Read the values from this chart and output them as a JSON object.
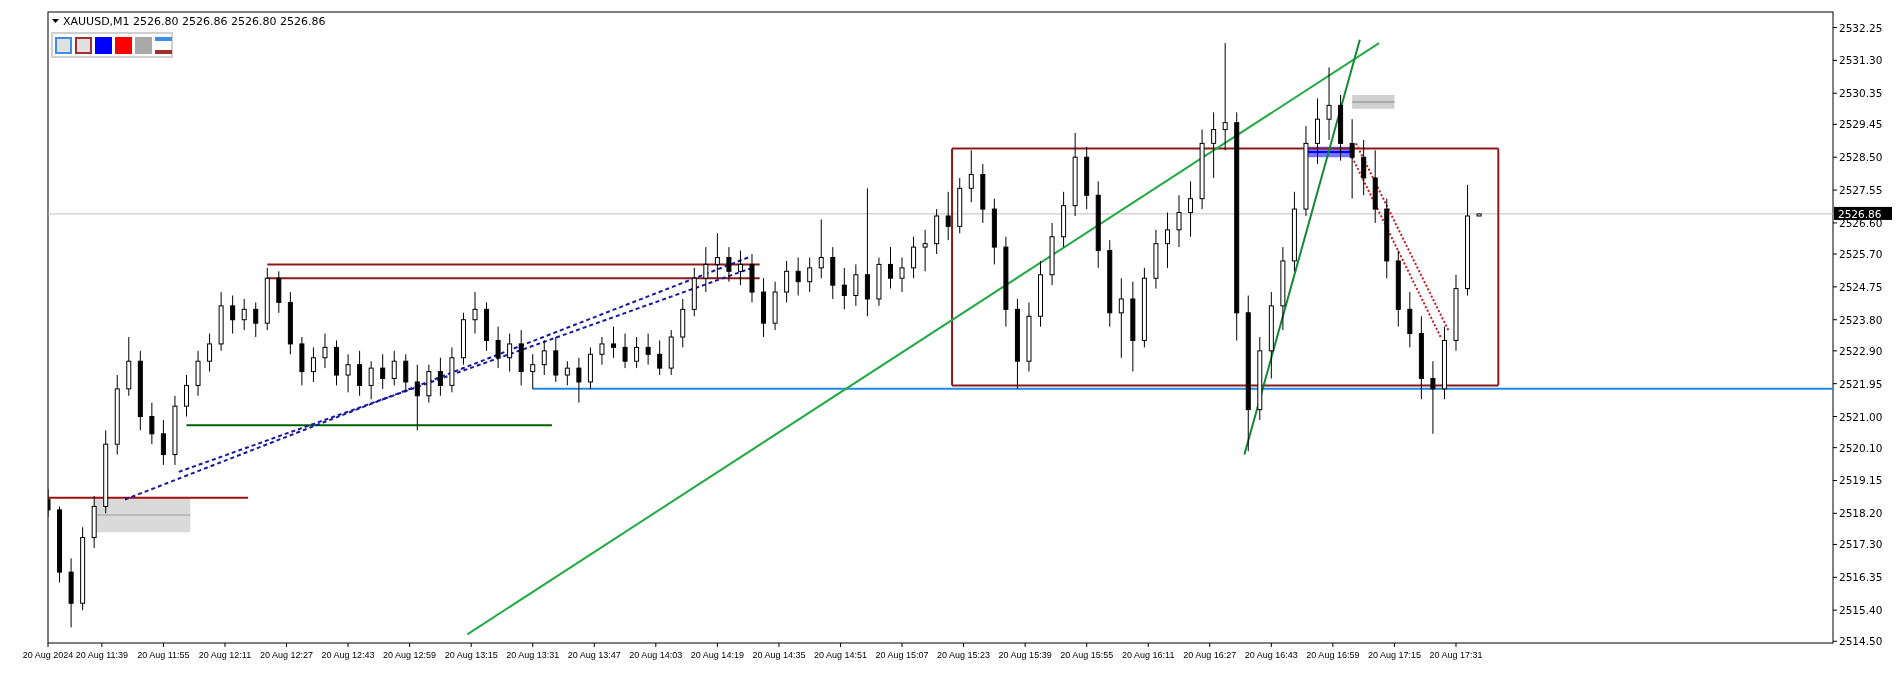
{
  "chart_data": {
    "type": "candlestick",
    "title": "XAUUSD,M1  2526.80 2526.86 2526.80 2526.86",
    "color": "#000000",
    "x": [
      "2024-08-20T11:25",
      "2024-08-20T11:28",
      "2024-08-20T11:31",
      "2024-08-20T11:34",
      "2024-08-20T11:37",
      "2024-08-20T11:40",
      "2024-08-20T11:43",
      "2024-08-20T11:46",
      "2024-08-20T11:49",
      "2024-08-20T11:52",
      "2024-08-20T11:55",
      "2024-08-20T11:58",
      "2024-08-20T12:01",
      "2024-08-20T12:04",
      "2024-08-20T12:07",
      "2024-08-20T12:10",
      "2024-08-20T12:13",
      "2024-08-20T12:16",
      "2024-08-20T12:19",
      "2024-08-20T12:22",
      "2024-08-20T12:25",
      "2024-08-20T12:28",
      "2024-08-20T12:31",
      "2024-08-20T12:34",
      "2024-08-20T12:37",
      "2024-08-20T12:40",
      "2024-08-20T12:43",
      "2024-08-20T12:46",
      "2024-08-20T12:49",
      "2024-08-20T12:52",
      "2024-08-20T12:55",
      "2024-08-20T12:58",
      "2024-08-20T13:01",
      "2024-08-20T13:04",
      "2024-08-20T13:07",
      "2024-08-20T13:10",
      "2024-08-20T13:13",
      "2024-08-20T13:16",
      "2024-08-20T13:19",
      "2024-08-20T13:22",
      "2024-08-20T13:25",
      "2024-08-20T13:28",
      "2024-08-20T13:31",
      "2024-08-20T13:34",
      "2024-08-20T13:37",
      "2024-08-20T13:40",
      "2024-08-20T13:43",
      "2024-08-20T13:46",
      "2024-08-20T13:49",
      "2024-08-20T13:52",
      "2024-08-20T13:55",
      "2024-08-20T13:58",
      "2024-08-20T14:01",
      "2024-08-20T14:04",
      "2024-08-20T14:07",
      "2024-08-20T14:10",
      "2024-08-20T14:13",
      "2024-08-20T14:16",
      "2024-08-20T14:19",
      "2024-08-20T14:22",
      "2024-08-20T14:25",
      "2024-08-20T14:28",
      "2024-08-20T14:31",
      "2024-08-20T14:34",
      "2024-08-20T14:37",
      "2024-08-20T14:40",
      "2024-08-20T14:43",
      "2024-08-20T14:46",
      "2024-08-20T14:49",
      "2024-08-20T14:52",
      "2024-08-20T14:55",
      "2024-08-20T14:58",
      "2024-08-20T15:01",
      "2024-08-20T15:04",
      "2024-08-20T15:07",
      "2024-08-20T15:10",
      "2024-08-20T15:13",
      "2024-08-20T15:16",
      "2024-08-20T15:19",
      "2024-08-20T15:22",
      "2024-08-20T15:25",
      "2024-08-20T15:28",
      "2024-08-20T15:31",
      "2024-08-20T15:34",
      "2024-08-20T15:37",
      "2024-08-20T15:40",
      "2024-08-20T15:43",
      "2024-08-20T15:46",
      "2024-08-20T15:49",
      "2024-08-20T15:52",
      "2024-08-20T15:55",
      "2024-08-20T15:58",
      "2024-08-20T16:01",
      "2024-08-20T16:04",
      "2024-08-20T16:07",
      "2024-08-20T16:10",
      "2024-08-20T16:13",
      "2024-08-20T16:16",
      "2024-08-20T16:19",
      "2024-08-20T16:22",
      "2024-08-20T16:25",
      "2024-08-20T16:28",
      "2024-08-20T16:31",
      "2024-08-20T16:34",
      "2024-08-20T16:37",
      "2024-08-20T16:40",
      "2024-08-20T16:43",
      "2024-08-20T16:46",
      "2024-08-20T16:49",
      "2024-08-20T16:52",
      "2024-08-20T16:55",
      "2024-08-20T16:58",
      "2024-08-20T17:01",
      "2024-08-20T17:04",
      "2024-08-20T17:07",
      "2024-08-20T17:10",
      "2024-08-20T17:13",
      "2024-08-20T17:16",
      "2024-08-20T17:19",
      "2024-08-20T17:22",
      "2024-08-20T17:25",
      "2024-08-20T17:28",
      "2024-08-20T17:31",
      "2024-08-20T17:34",
      "2024-08-20T17:37"
    ],
    "ohlc": [
      [
        2518.6,
        2518.9,
        2518.1,
        2518.3
      ],
      [
        2518.3,
        2518.4,
        2516.2,
        2516.5
      ],
      [
        2516.5,
        2516.9,
        2514.9,
        2515.6
      ],
      [
        2515.6,
        2517.8,
        2515.4,
        2517.5
      ],
      [
        2517.5,
        2518.7,
        2517.2,
        2518.4
      ],
      [
        2518.4,
        2520.6,
        2518.2,
        2520.2
      ],
      [
        2520.2,
        2522.2,
        2519.9,
        2521.8
      ],
      [
        2521.8,
        2523.3,
        2521.6,
        2522.6
      ],
      [
        2522.6,
        2522.9,
        2520.6,
        2521.0
      ],
      [
        2521.0,
        2521.4,
        2520.2,
        2520.5
      ],
      [
        2520.5,
        2520.9,
        2519.6,
        2519.9
      ],
      [
        2519.9,
        2521.6,
        2519.6,
        2521.3
      ],
      [
        2521.3,
        2522.2,
        2521.0,
        2521.9
      ],
      [
        2521.9,
        2522.9,
        2521.6,
        2522.6
      ],
      [
        2522.6,
        2523.4,
        2522.3,
        2523.1
      ],
      [
        2523.1,
        2524.6,
        2522.9,
        2524.2
      ],
      [
        2524.2,
        2524.5,
        2523.4,
        2523.8
      ],
      [
        2523.8,
        2524.4,
        2523.5,
        2524.1
      ],
      [
        2524.1,
        2524.3,
        2523.3,
        2523.7
      ],
      [
        2523.7,
        2525.3,
        2523.5,
        2525.0
      ],
      [
        2525.0,
        2525.2,
        2524.0,
        2524.3
      ],
      [
        2524.3,
        2524.6,
        2522.8,
        2523.1
      ],
      [
        2523.1,
        2523.3,
        2521.9,
        2522.3
      ],
      [
        2522.3,
        2523.0,
        2522.0,
        2522.7
      ],
      [
        2522.7,
        2523.4,
        2522.4,
        2523.0
      ],
      [
        2523.0,
        2523.2,
        2521.9,
        2522.2
      ],
      [
        2522.2,
        2522.8,
        2521.7,
        2522.5
      ],
      [
        2522.5,
        2522.9,
        2521.6,
        2521.9
      ],
      [
        2521.9,
        2522.6,
        2521.5,
        2522.4
      ],
      [
        2522.4,
        2522.8,
        2521.8,
        2522.1
      ],
      [
        2522.1,
        2522.9,
        2521.9,
        2522.6
      ],
      [
        2522.6,
        2522.8,
        2521.7,
        2522.0
      ],
      [
        2522.0,
        2522.5,
        2520.6,
        2521.6
      ],
      [
        2521.6,
        2522.5,
        2521.4,
        2522.3
      ],
      [
        2522.3,
        2522.7,
        2521.6,
        2521.9
      ],
      [
        2521.9,
        2523.0,
        2521.7,
        2522.7
      ],
      [
        2522.7,
        2524.0,
        2522.5,
        2523.8
      ],
      [
        2523.8,
        2524.6,
        2523.4,
        2524.1
      ],
      [
        2524.1,
        2524.3,
        2522.9,
        2523.2
      ],
      [
        2523.2,
        2523.6,
        2522.4,
        2522.7
      ],
      [
        2522.7,
        2523.4,
        2522.3,
        2523.1
      ],
      [
        2523.1,
        2523.5,
        2521.9,
        2522.3
      ],
      [
        2522.3,
        2522.8,
        2521.8,
        2522.5
      ],
      [
        2522.5,
        2523.2,
        2522.2,
        2522.9
      ],
      [
        2522.9,
        2523.3,
        2522.0,
        2522.2
      ],
      [
        2522.2,
        2522.6,
        2521.9,
        2522.4
      ],
      [
        2522.4,
        2522.7,
        2521.4,
        2522.0
      ],
      [
        2522.0,
        2523.0,
        2521.8,
        2522.8
      ],
      [
        2522.8,
        2523.3,
        2522.5,
        2523.1
      ],
      [
        2523.1,
        2523.6,
        2522.7,
        2523.0
      ],
      [
        2523.0,
        2523.4,
        2522.4,
        2522.6
      ],
      [
        2522.6,
        2523.3,
        2522.4,
        2523.0
      ],
      [
        2523.0,
        2523.4,
        2522.5,
        2522.8
      ],
      [
        2522.8,
        2523.2,
        2522.2,
        2522.4
      ],
      [
        2522.4,
        2523.5,
        2522.2,
        2523.3
      ],
      [
        2523.3,
        2524.4,
        2523.0,
        2524.1
      ],
      [
        2524.1,
        2525.3,
        2523.9,
        2525.0
      ],
      [
        2525.0,
        2525.9,
        2524.6,
        2525.4
      ],
      [
        2525.4,
        2526.3,
        2525.0,
        2525.6
      ],
      [
        2525.6,
        2525.9,
        2524.9,
        2525.2
      ],
      [
        2525.2,
        2525.8,
        2524.8,
        2525.4
      ],
      [
        2525.4,
        2525.7,
        2524.3,
        2524.6
      ],
      [
        2524.6,
        2525.0,
        2523.3,
        2523.7
      ],
      [
        2523.7,
        2524.9,
        2523.5,
        2524.6
      ],
      [
        2524.6,
        2525.5,
        2524.3,
        2525.2
      ],
      [
        2525.2,
        2525.6,
        2524.5,
        2524.9
      ],
      [
        2524.9,
        2525.6,
        2524.6,
        2525.3
      ],
      [
        2525.3,
        2526.7,
        2525.0,
        2525.6
      ],
      [
        2525.6,
        2525.9,
        2524.4,
        2524.8
      ],
      [
        2524.8,
        2525.3,
        2524.1,
        2524.5
      ],
      [
        2524.5,
        2525.4,
        2524.2,
        2525.1
      ],
      [
        2525.1,
        2527.6,
        2523.9,
        2524.4
      ],
      [
        2524.4,
        2525.6,
        2524.2,
        2525.4
      ],
      [
        2525.4,
        2525.9,
        2524.7,
        2525.0
      ],
      [
        2525.0,
        2525.6,
        2524.6,
        2525.3
      ],
      [
        2525.3,
        2526.2,
        2525.0,
        2525.9
      ],
      [
        2525.9,
        2526.4,
        2525.2,
        2526.0
      ],
      [
        2526.0,
        2527.0,
        2525.7,
        2526.8
      ],
      [
        2526.8,
        2527.5,
        2526.1,
        2526.5
      ],
      [
        2526.5,
        2527.9,
        2526.3,
        2527.6
      ],
      [
        2527.6,
        2528.7,
        2527.2,
        2528.0
      ],
      [
        2528.0,
        2528.3,
        2526.6,
        2527.0
      ],
      [
        2527.0,
        2527.3,
        2525.4,
        2525.9
      ],
      [
        2525.9,
        2526.2,
        2523.6,
        2524.1
      ],
      [
        2524.1,
        2524.4,
        2521.8,
        2522.6
      ],
      [
        2522.6,
        2524.3,
        2522.3,
        2523.9
      ],
      [
        2523.9,
        2525.5,
        2523.6,
        2525.1
      ],
      [
        2525.1,
        2526.6,
        2524.8,
        2526.2
      ],
      [
        2526.2,
        2527.5,
        2525.9,
        2527.1
      ],
      [
        2527.1,
        2529.2,
        2526.8,
        2528.5
      ],
      [
        2528.5,
        2528.8,
        2527.0,
        2527.4
      ],
      [
        2527.4,
        2527.8,
        2525.3,
        2525.8
      ],
      [
        2525.8,
        2526.1,
        2523.6,
        2524.0
      ],
      [
        2524.0,
        2525.0,
        2522.7,
        2524.4
      ],
      [
        2524.4,
        2524.9,
        2522.3,
        2523.2
      ],
      [
        2523.2,
        2525.3,
        2523.0,
        2525.0
      ],
      [
        2525.0,
        2526.4,
        2524.7,
        2526.0
      ],
      [
        2526.0,
        2526.9,
        2525.3,
        2526.4
      ],
      [
        2526.4,
        2527.4,
        2525.9,
        2526.9
      ],
      [
        2526.9,
        2527.8,
        2526.2,
        2527.3
      ],
      [
        2527.3,
        2529.3,
        2527.0,
        2528.9
      ],
      [
        2528.9,
        2529.8,
        2527.9,
        2529.3
      ],
      [
        2529.3,
        2531.8,
        2528.7,
        2529.5
      ],
      [
        2529.5,
        2529.8,
        2523.2,
        2524.0
      ],
      [
        2524.0,
        2524.5,
        2520.0,
        2521.2
      ],
      [
        2521.2,
        2523.3,
        2520.9,
        2522.9
      ],
      [
        2522.9,
        2524.6,
        2522.1,
        2524.2
      ],
      [
        2524.2,
        2525.9,
        2523.5,
        2525.5
      ],
      [
        2525.5,
        2527.5,
        2525.2,
        2527.0
      ],
      [
        2527.0,
        2529.4,
        2526.8,
        2528.9
      ],
      [
        2528.9,
        2530.2,
        2528.3,
        2529.6
      ],
      [
        2529.6,
        2531.1,
        2529.0,
        2530.0
      ],
      [
        2530.0,
        2530.3,
        2528.4,
        2528.9
      ],
      [
        2528.9,
        2529.6,
        2527.3,
        2528.5
      ],
      [
        2528.5,
        2529.0,
        2527.4,
        2527.9
      ],
      [
        2527.9,
        2528.7,
        2526.6,
        2527.0
      ],
      [
        2527.0,
        2527.3,
        2525.0,
        2525.5
      ],
      [
        2525.5,
        2525.8,
        2523.6,
        2524.1
      ],
      [
        2524.1,
        2524.6,
        2523.0,
        2523.4
      ],
      [
        2523.4,
        2523.9,
        2521.5,
        2522.1
      ],
      [
        2522.1,
        2522.6,
        2520.5,
        2521.8
      ],
      [
        2521.8,
        2523.6,
        2521.5,
        2523.2
      ],
      [
        2523.2,
        2525.1,
        2522.9,
        2524.7
      ],
      [
        2524.7,
        2527.7,
        2524.5,
        2526.8
      ],
      [
        2526.8,
        2526.86,
        2526.8,
        2526.86
      ]
    ],
    "series": [
      {
        "type": "line",
        "color": "#bbbbbb",
        "x": [
          "2024-08-20T11:37",
          "2024-08-20T12:02"
        ],
        "values": [
          2518.15,
          2518.15
        ],
        "lower": [
          2517.65,
          2517.65
        ],
        "upper": [
          2518.65,
          2518.65
        ]
      },
      {
        "type": "line",
        "color": "#a9a9a9",
        "x": [
          "2024-08-20T17:04",
          "2024-08-20T17:15"
        ],
        "values": [
          2530.1,
          2530.1
        ],
        "lower": [
          2529.9,
          2529.9
        ],
        "upper": [
          2530.3,
          2530.3
        ]
      },
      {
        "type": "line",
        "color": "#0000ff",
        "x": [
          "2024-08-20T16:52",
          "2024-08-20T17:04"
        ],
        "values": [
          2528.65,
          2528.65
        ],
        "lower": [
          2528.5,
          2528.5
        ],
        "upper": [
          2528.8,
          2528.8
        ]
      },
      {
        "type": "line",
        "color": "#8b1a1a",
        "x": [
          "2024-08-20T12:22",
          "2024-08-20T14:30"
        ],
        "values": [
          2525.4,
          2525.4
        ]
      },
      {
        "type": "line",
        "color": "#8b1a1a",
        "x": [
          "2024-08-20T12:22",
          "2024-08-20T14:30"
        ],
        "values": [
          2525.0,
          2525.0
        ]
      },
      {
        "type": "line",
        "color": "#8b1a1a",
        "x": [
          "2024-08-20T15:20",
          "2024-08-20T17:42"
        ],
        "values": [
          2528.75,
          2528.75
        ]
      },
      {
        "type": "line",
        "color": "#8b1a1a",
        "x": [
          "2024-08-20T15:20",
          "2024-08-20T17:42"
        ],
        "values": [
          2521.9,
          2521.9
        ]
      },
      {
        "type": "line",
        "color": "#8b1a1a",
        "x": [
          "2024-08-20T15:20",
          "2024-08-20T15:20"
        ],
        "values": [
          2528.75,
          2521.9
        ]
      },
      {
        "type": "line",
        "color": "#8b1a1a",
        "x": [
          "2024-08-20T17:42",
          "2024-08-20T17:42"
        ],
        "values": [
          2528.75,
          2521.9
        ]
      },
      {
        "type": "line",
        "color": "#a01010",
        "x": [
          "2024-08-20T11:25",
          "2024-08-20T12:17"
        ],
        "values": [
          2518.65,
          2518.65
        ]
      },
      {
        "type": "line",
        "color": "#006400",
        "x": [
          "2024-08-20T12:01",
          "2024-08-20T13:36"
        ],
        "values": [
          2520.75,
          2520.75
        ]
      },
      {
        "type": "line",
        "color": "#1e88e5",
        "x": [
          "2024-08-20T13:31",
          "2024-08-20T19:09"
        ],
        "values": [
          2521.8,
          2521.8
        ]
      },
      {
        "type": "line",
        "color": "#1a1aa0",
        "line_style": "dashed",
        "x": [
          "2024-08-20T11:45",
          "2024-08-20T14:27"
        ],
        "values": [
          2518.6,
          2525.6
        ]
      },
      {
        "type": "line",
        "color": "#1a1aa0",
        "line_style": "dashed",
        "x": [
          "2024-08-20T11:59",
          "2024-08-20T14:28"
        ],
        "values": [
          2519.4,
          2525.3
        ]
      },
      {
        "type": "line",
        "color": "#c02020",
        "line_style": "dotted",
        "x": [
          "2024-08-20T17:05",
          "2024-08-20T17:29"
        ],
        "values": [
          2528.9,
          2523.5
        ]
      },
      {
        "type": "line",
        "color": "#c02020",
        "line_style": "dotted",
        "x": [
          "2024-08-20T17:04",
          "2024-08-20T17:27"
        ],
        "values": [
          2528.5,
          2523.3
        ]
      },
      {
        "type": "line",
        "color": "#22aa44",
        "x": [
          "2024-08-20T13:14",
          "2024-08-20T17:11"
        ],
        "values": [
          2514.7,
          2531.8
        ]
      },
      {
        "type": "line",
        "color": "#118833",
        "x": [
          "2024-08-20T16:36",
          "2024-08-20T17:06"
        ],
        "values": [
          2519.9,
          2531.9
        ]
      }
    ],
    "ref_lines": [
      {
        "axis": "y",
        "value": 2526.86,
        "label": "2526.86",
        "color": "#c0c0c0"
      }
    ],
    "xlim": [
      "2024-08-20T11:25",
      "2024-08-20T19:09"
    ],
    "xticks": [
      {
        "value": "2024-08-20T11:25",
        "label": "20 Aug 2024"
      },
      {
        "value": "2024-08-20T11:39",
        "label": "20 Aug 11:39"
      },
      {
        "value": "2024-08-20T11:55",
        "label": "20 Aug 11:55"
      },
      {
        "value": "2024-08-20T12:11",
        "label": "20 Aug 12:11"
      },
      {
        "value": "2024-08-20T12:27",
        "label": "20 Aug 12:27"
      },
      {
        "value": "2024-08-20T12:43",
        "label": "20 Aug 12:43"
      },
      {
        "value": "2024-08-20T12:59",
        "label": "20 Aug 12:59"
      },
      {
        "value": "2024-08-20T13:15",
        "label": "20 Aug 13:15"
      },
      {
        "value": "2024-08-20T13:31",
        "label": "20 Aug 13:31"
      },
      {
        "value": "2024-08-20T13:47",
        "label": "20 Aug 13:47"
      },
      {
        "value": "2024-08-20T14:03",
        "label": "20 Aug 14:03"
      },
      {
        "value": "2024-08-20T14:19",
        "label": "20 Aug 14:19"
      },
      {
        "value": "2024-08-20T14:35",
        "label": "20 Aug 14:35"
      },
      {
        "value": "2024-08-20T14:51",
        "label": "20 Aug 14:51"
      },
      {
        "value": "2024-08-20T15:07",
        "label": "20 Aug 15:07"
      },
      {
        "value": "2024-08-20T15:23",
        "label": "20 Aug 15:23"
      },
      {
        "value": "2024-08-20T15:39",
        "label": "20 Aug 15:39"
      },
      {
        "value": "2024-08-20T15:55",
        "label": "20 Aug 15:55"
      },
      {
        "value": "2024-08-20T16:11",
        "label": "20 Aug 16:11"
      },
      {
        "value": "2024-08-20T16:27",
        "label": "20 Aug 16:27"
      },
      {
        "value": "2024-08-20T16:43",
        "label": "20 Aug 16:43"
      },
      {
        "value": "2024-08-20T16:59",
        "label": "20 Aug 16:59"
      },
      {
        "value": "2024-08-20T17:15",
        "label": "20 Aug 17:15"
      },
      {
        "value": "2024-08-20T17:31",
        "label": "20 Aug 17:31"
      }
    ],
    "ylim": [
      2514.45,
      2532.7
    ],
    "yticks": [
      {
        "value": 2532.25,
        "label": "2532.25"
      },
      {
        "value": 2531.3,
        "label": "2531.30"
      },
      {
        "value": 2530.35,
        "label": "2530.35"
      },
      {
        "value": 2529.45,
        "label": "2529.45"
      },
      {
        "value": 2528.5,
        "label": "2528.50"
      },
      {
        "value": 2527.55,
        "label": "2527.55"
      },
      {
        "value": 2526.6,
        "label": "2526.60"
      },
      {
        "value": 2525.7,
        "label": "2525.70"
      },
      {
        "value": 2524.75,
        "label": "2524.75"
      },
      {
        "value": 2523.8,
        "label": "2523.80"
      },
      {
        "value": 2522.9,
        "label": "2522.90"
      },
      {
        "value": 2521.95,
        "label": "2521.95"
      },
      {
        "value": 2521.0,
        "label": "2521.00"
      },
      {
        "value": 2520.1,
        "label": "2520.10"
      },
      {
        "value": 2519.15,
        "label": "2519.15"
      },
      {
        "value": 2518.2,
        "label": "2518.20"
      },
      {
        "value": 2517.3,
        "label": "2517.30"
      },
      {
        "value": 2516.35,
        "label": "2516.35"
      },
      {
        "value": 2515.4,
        "label": "2515.40"
      },
      {
        "value": 2514.5,
        "label": "2514.50"
      }
    ]
  }
}
